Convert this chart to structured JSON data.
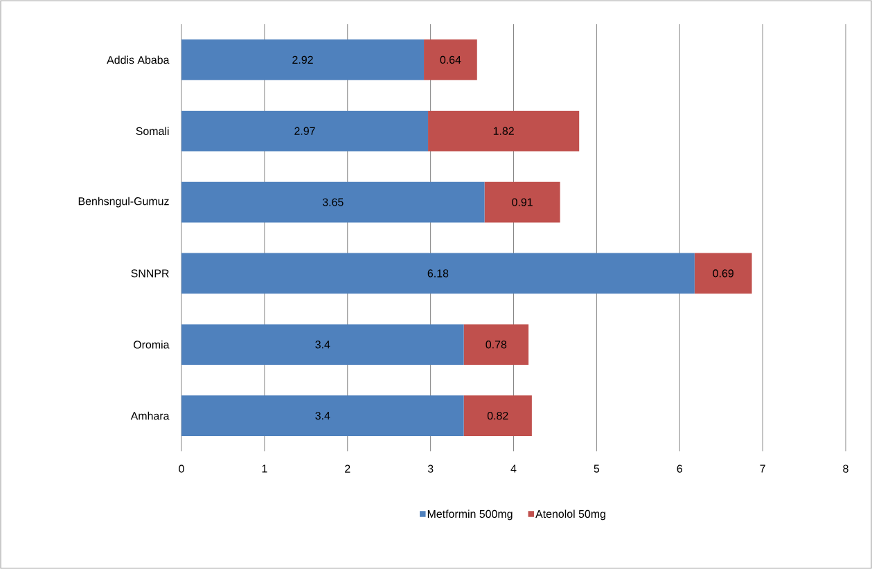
{
  "chart_data": {
    "type": "bar",
    "orientation": "horizontal",
    "stacked": true,
    "categories": [
      "Addis Ababa",
      "Somali",
      "Benhsngul-Gumuz",
      "SNNPR",
      "Oromia",
      "Amhara"
    ],
    "series": [
      {
        "name": "Metformin 500mg",
        "color": "#4f81bd",
        "values": [
          2.92,
          2.97,
          3.65,
          6.18,
          3.4,
          3.4
        ]
      },
      {
        "name": "Atenolol 50mg",
        "color": "#c0504d",
        "values": [
          0.64,
          1.82,
          0.91,
          0.69,
          0.78,
          0.82
        ]
      }
    ],
    "xlim": [
      0,
      8
    ],
    "xticks": [
      0,
      1,
      2,
      3,
      4,
      5,
      6,
      7,
      8
    ],
    "grid": "x",
    "legend": "bottom",
    "data_labels": true
  }
}
